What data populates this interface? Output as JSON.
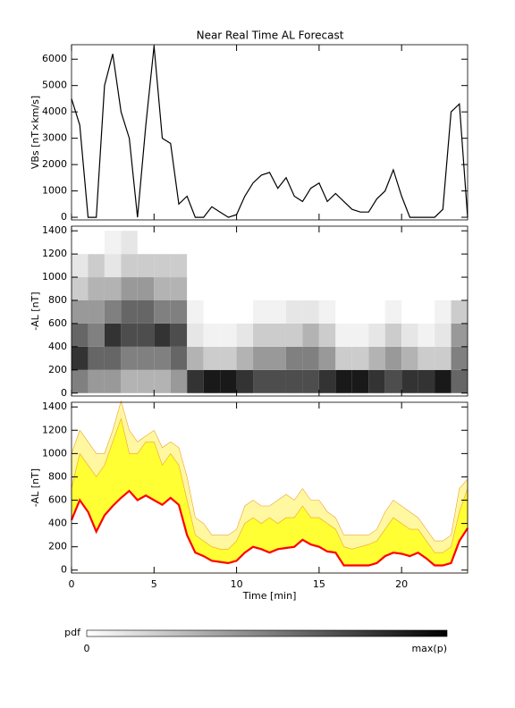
{
  "chart_data": [
    {
      "type": "line",
      "title": "Near Real Time AL Forecast",
      "ylabel": "VBs [nT×km/s]",
      "xlim": [
        0,
        24
      ],
      "xticks": [
        0,
        5,
        10,
        15,
        20
      ],
      "ylim": [
        -100,
        6550
      ],
      "yticks": [
        0,
        1000,
        2000,
        3000,
        4000,
        5000,
        6000
      ],
      "color": "#000000",
      "x": [
        0,
        0.5,
        1,
        1.5,
        2,
        2.5,
        3,
        3.5,
        4,
        4.5,
        5,
        5.5,
        6,
        6.5,
        7,
        7.5,
        8,
        8.5,
        9,
        9.5,
        10,
        10.5,
        11,
        11.5,
        12,
        12.5,
        13,
        13.5,
        14,
        14.5,
        15,
        15.5,
        16,
        16.5,
        17,
        17.5,
        18,
        18.5,
        19,
        19.5,
        20,
        20.5,
        21,
        21.5,
        22,
        22.5,
        23,
        23.5,
        24
      ],
      "values": [
        4500,
        3500,
        0,
        0,
        5000,
        6200,
        4000,
        3000,
        0,
        3500,
        6500,
        3000,
        2800,
        500,
        800,
        0,
        0,
        400,
        200,
        0,
        100,
        800,
        1300,
        1600,
        1700,
        1100,
        1500,
        800,
        600,
        1100,
        1300,
        600,
        900,
        600,
        300,
        200,
        200,
        700,
        1000,
        1800,
        800,
        0,
        0,
        0,
        0,
        300,
        4000,
        4300,
        0
      ]
    },
    {
      "type": "heatmap",
      "ylabel": "-AL [nT]",
      "xlim": [
        0,
        24
      ],
      "xticks": [
        0,
        5,
        10,
        15,
        20
      ],
      "ylim": [
        -25,
        1440
      ],
      "yticks": [
        0,
        200,
        400,
        600,
        800,
        1000,
        1200,
        1400
      ],
      "x": [
        0,
        1,
        2,
        3,
        4,
        5,
        6,
        7,
        8,
        9,
        10,
        11,
        12,
        13,
        14,
        15,
        16,
        17,
        18,
        19,
        20,
        21,
        22,
        23,
        24
      ],
      "ybins": [
        0,
        200,
        400,
        600,
        800,
        1000,
        1200,
        1400
      ],
      "z": [
        [
          0.5,
          0.8,
          0.6,
          0.4,
          0.2,
          0.1,
          0
        ],
        [
          0.4,
          0.6,
          0.5,
          0.4,
          0.3,
          0.2,
          0
        ],
        [
          0.4,
          0.6,
          0.8,
          0.5,
          0.3,
          0.1,
          0.05
        ],
        [
          0.3,
          0.5,
          0.7,
          0.6,
          0.4,
          0.2,
          0.1
        ],
        [
          0.3,
          0.5,
          0.7,
          0.6,
          0.4,
          0.2,
          0
        ],
        [
          0.3,
          0.5,
          0.8,
          0.5,
          0.3,
          0.2,
          0
        ],
        [
          0.4,
          0.6,
          0.7,
          0.5,
          0.3,
          0.2,
          0
        ],
        [
          0.8,
          0.3,
          0.1,
          0.05,
          0,
          0,
          0
        ],
        [
          0.9,
          0.2,
          0.05,
          0,
          0,
          0,
          0
        ],
        [
          0.9,
          0.2,
          0.05,
          0,
          0,
          0,
          0
        ],
        [
          0.8,
          0.3,
          0.1,
          0,
          0,
          0,
          0
        ],
        [
          0.7,
          0.4,
          0.2,
          0.05,
          0,
          0,
          0
        ],
        [
          0.7,
          0.4,
          0.2,
          0.05,
          0,
          0,
          0
        ],
        [
          0.7,
          0.5,
          0.2,
          0.1,
          0,
          0,
          0
        ],
        [
          0.7,
          0.5,
          0.3,
          0.1,
          0,
          0,
          0
        ],
        [
          0.8,
          0.4,
          0.2,
          0.05,
          0,
          0,
          0
        ],
        [
          0.9,
          0.2,
          0.05,
          0,
          0,
          0,
          0
        ],
        [
          0.9,
          0.2,
          0.05,
          0,
          0,
          0,
          0
        ],
        [
          0.8,
          0.3,
          0.1,
          0,
          0,
          0,
          0
        ],
        [
          0.7,
          0.4,
          0.2,
          0.05,
          0,
          0,
          0
        ],
        [
          0.8,
          0.3,
          0.1,
          0,
          0,
          0,
          0
        ],
        [
          0.8,
          0.2,
          0.05,
          0,
          0,
          0,
          0
        ],
        [
          0.9,
          0.2,
          0.1,
          0.05,
          0,
          0,
          0
        ],
        [
          0.6,
          0.5,
          0.4,
          0.2,
          0,
          0,
          0
        ]
      ],
      "colorbar": {
        "label": "pdf",
        "min_label": "0",
        "max_label": "max(p)"
      }
    },
    {
      "type": "band",
      "ylabel": "-AL [nT]",
      "xlabel": "Time [min]",
      "xlim": [
        0,
        24
      ],
      "xticks": [
        0,
        5,
        10,
        15,
        20
      ],
      "ylim": [
        -25,
        1440
      ],
      "yticks": [
        0,
        200,
        400,
        600,
        800,
        1000,
        1200,
        1400
      ],
      "x": [
        0,
        0.5,
        1,
        1.5,
        2,
        2.5,
        3,
        3.5,
        4,
        4.5,
        5,
        5.5,
        6,
        6.5,
        7,
        7.5,
        8,
        8.5,
        9,
        9.5,
        10,
        10.5,
        11,
        11.5,
        12,
        12.5,
        13,
        13.5,
        14,
        14.5,
        15,
        15.5,
        16,
        16.5,
        17,
        17.5,
        18,
        18.5,
        19,
        19.5,
        20,
        20.5,
        21,
        21.5,
        22,
        22.5,
        23,
        23.5,
        24
      ],
      "series": [
        {
          "color": "#fff8a0",
          "values": [
            1000,
            1200,
            1100,
            1000,
            1000,
            1200,
            1450,
            1200,
            1100,
            1150,
            1200,
            1050,
            1100,
            1050,
            800,
            450,
            400,
            300,
            300,
            300,
            350,
            550,
            600,
            550,
            550,
            600,
            650,
            600,
            700,
            600,
            600,
            500,
            450,
            300,
            300,
            300,
            300,
            350,
            500,
            600,
            550,
            500,
            450,
            350,
            250,
            250,
            300,
            700,
            780
          ]
        },
        {
          "color": "#ffff33",
          "values": [
            700,
            1000,
            900,
            800,
            900,
            1100,
            1300,
            1000,
            1000,
            1100,
            1100,
            900,
            1000,
            900,
            600,
            300,
            250,
            200,
            180,
            180,
            250,
            400,
            450,
            400,
            450,
            400,
            450,
            450,
            550,
            450,
            450,
            400,
            350,
            200,
            180,
            200,
            220,
            250,
            350,
            450,
            400,
            350,
            350,
            250,
            150,
            150,
            200,
            500,
            700
          ]
        },
        {
          "color": "#ff0000",
          "values": [
            430,
            600,
            500,
            330,
            470,
            550,
            620,
            680,
            600,
            640,
            600,
            560,
            620,
            560,
            300,
            150,
            120,
            80,
            70,
            60,
            80,
            150,
            200,
            180,
            150,
            180,
            190,
            200,
            260,
            220,
            200,
            160,
            150,
            40,
            40,
            40,
            40,
            60,
            120,
            150,
            140,
            120,
            150,
            100,
            40,
            40,
            60,
            250,
            360
          ]
        }
      ]
    }
  ]
}
